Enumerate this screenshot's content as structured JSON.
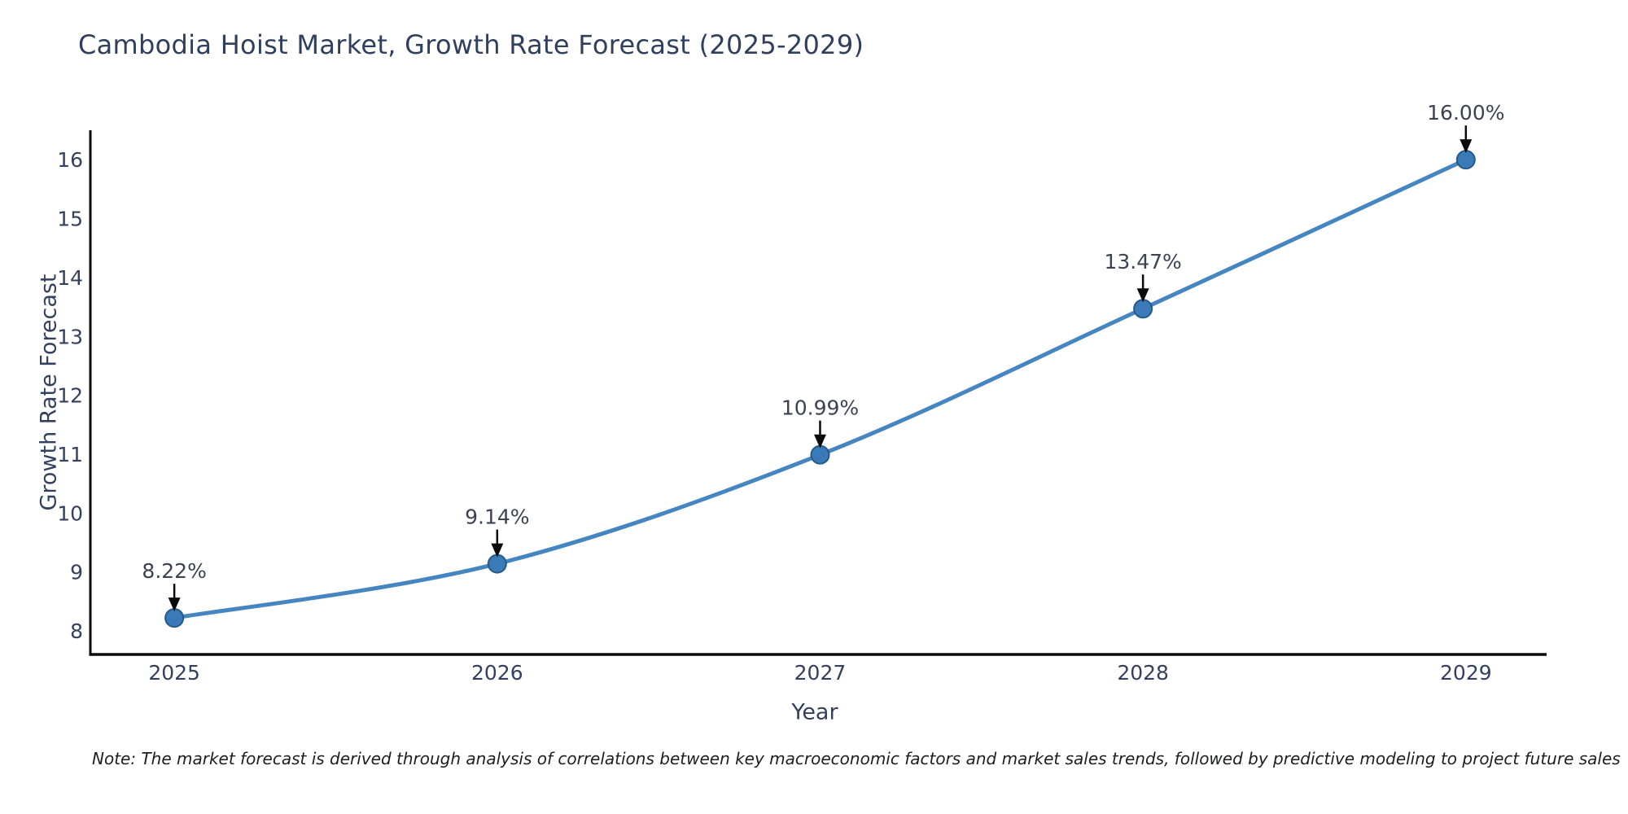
{
  "chart_data": {
    "type": "line",
    "title": "Cambodia Hoist Market, Growth Rate Forecast (2025-2029)",
    "xlabel": "Year",
    "ylabel": "Growth Rate Forecast",
    "x": [
      2025,
      2026,
      2027,
      2028,
      2029
    ],
    "values": [
      8.22,
      9.14,
      10.99,
      13.47,
      16.0
    ],
    "point_labels": [
      "8.22%",
      "9.14%",
      "10.99%",
      "13.47%",
      "16.00%"
    ],
    "yticks": [
      8,
      9,
      10,
      11,
      12,
      13,
      14,
      15,
      16
    ],
    "xlim": [
      2024.74,
      2029.25
    ],
    "ylim": [
      7.6,
      16.5
    ],
    "grid": false,
    "legend": "none",
    "line_color": "#4585c0",
    "marker_color": "#3a7ab8",
    "marker_edge_color": "#265a87",
    "colors": {
      "spine": "#0b0b0b",
      "tick_label": "#33415e",
      "title": "#2f3f5c",
      "axis_label": "#33415e",
      "annotation": "#3b4252",
      "arrow": "#0b0b0b",
      "note": "#1c1e22",
      "background": "#ffffff"
    },
    "note": "Note: The market forecast is derived through analysis of correlations between key macroeconomic factors and market sales trends, followed by predictive modeling to project future sales"
  }
}
